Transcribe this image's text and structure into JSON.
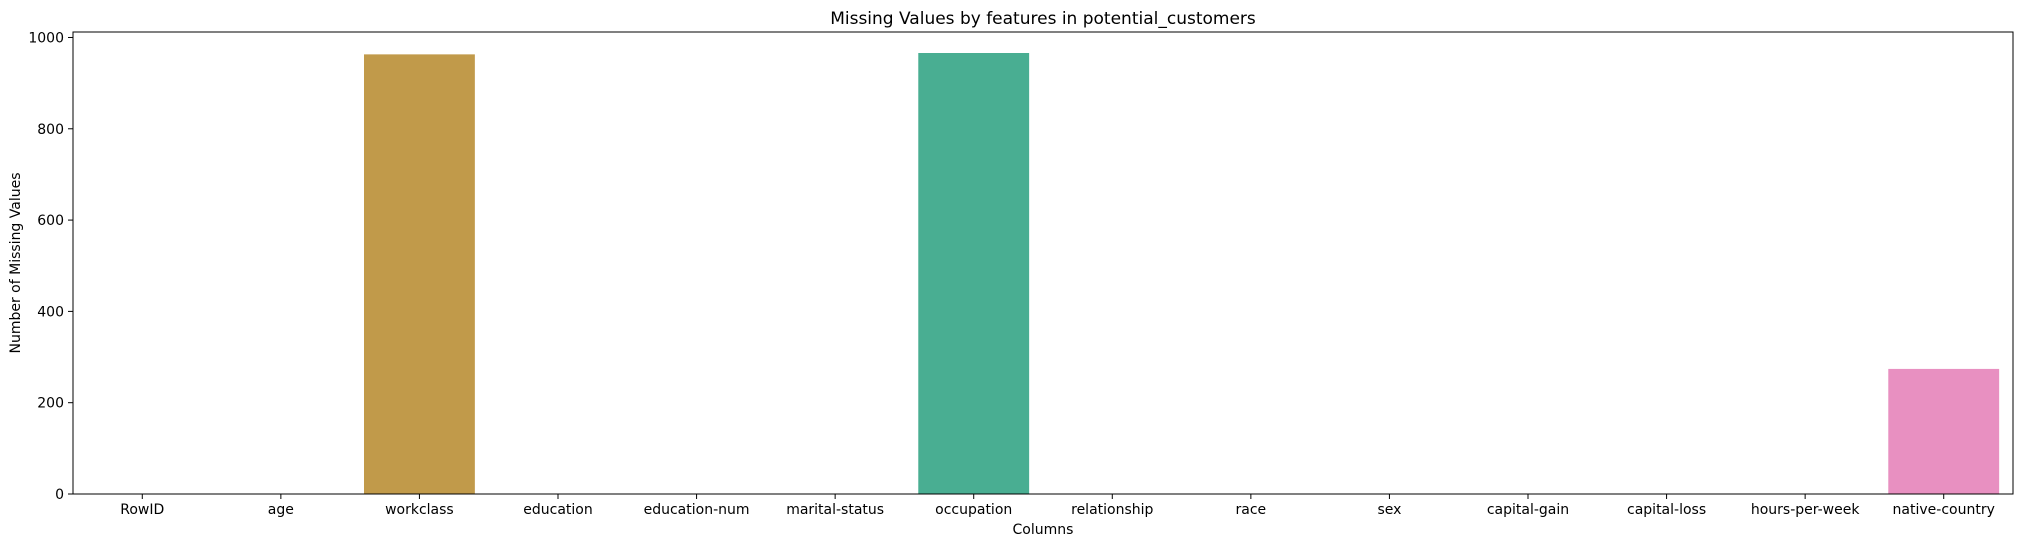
{
  "chart_data": {
    "type": "bar",
    "title": "Missing Values by features in potential_customers",
    "xlabel": "Columns",
    "ylabel": "Number of Missing Values",
    "categories": [
      "RowID",
      "age",
      "workclass",
      "education",
      "education-num",
      "marital-status",
      "occupation",
      "relationship",
      "race",
      "sex",
      "capital-gain",
      "capital-loss",
      "hours-per-week",
      "native-country"
    ],
    "values": [
      0,
      0,
      963,
      0,
      0,
      0,
      966,
      0,
      0,
      0,
      0,
      0,
      0,
      274
    ],
    "colors": [
      "#f77189",
      "#e08a31",
      "#c19a4a",
      "#a3a132",
      "#7eac31",
      "#33b165",
      "#49ae92",
      "#4fabab",
      "#53a8be",
      "#4ea0d8",
      "#9a8ff2",
      "#d873ee",
      "#f662d3",
      "#e890c1"
    ],
    "ylim": [
      0,
      1012
    ],
    "yticks": [
      0,
      200,
      400,
      600,
      800,
      1000
    ],
    "grid": false,
    "legend": "none"
  }
}
